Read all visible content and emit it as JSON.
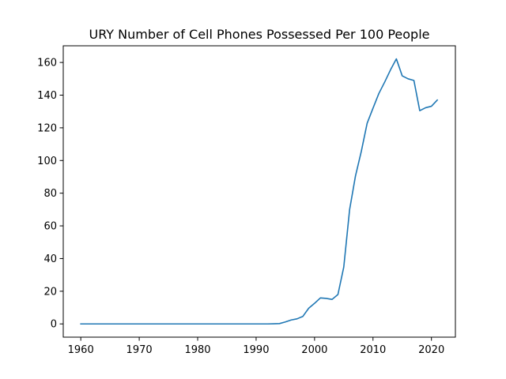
{
  "chart_data": {
    "type": "line",
    "title": "URY Number of Cell Phones Possessed Per 100 People",
    "xlabel": "",
    "ylabel": "",
    "xlim": [
      1957,
      2024.1
    ],
    "ylim": [
      -8.1,
      170.2
    ],
    "x_ticks": [
      1960,
      1970,
      1980,
      1990,
      2000,
      2010,
      2020
    ],
    "y_ticks": [
      0,
      20,
      40,
      60,
      80,
      100,
      120,
      140,
      160
    ],
    "grid": false,
    "legend": "none",
    "series": [
      {
        "color": "#1f77b4",
        "x": [
          1960,
          1961,
          1962,
          1963,
          1964,
          1965,
          1966,
          1967,
          1968,
          1969,
          1970,
          1971,
          1972,
          1973,
          1974,
          1975,
          1976,
          1977,
          1978,
          1979,
          1980,
          1981,
          1982,
          1983,
          1984,
          1985,
          1986,
          1987,
          1988,
          1989,
          1990,
          1991,
          1992,
          1993,
          1994,
          1995,
          1996,
          1997,
          1998,
          1999,
          2000,
          2001,
          2002,
          2003,
          2004,
          2005,
          2006,
          2007,
          2008,
          2009,
          2010,
          2011,
          2012,
          2013,
          2014,
          2015,
          2016,
          2017,
          2018,
          2019,
          2020,
          2021
        ],
        "values": [
          0,
          0,
          0,
          0,
          0,
          0,
          0,
          0,
          0,
          0,
          0,
          0,
          0,
          0,
          0,
          0,
          0,
          0,
          0,
          0,
          0,
          0,
          0,
          0,
          0,
          0,
          0,
          0,
          0,
          0,
          0,
          0,
          0,
          0.1,
          0.2,
          1.2,
          2.4,
          3.1,
          4.6,
          9.6,
          12.6,
          15.9,
          15.6,
          15.0,
          18.0,
          34.8,
          70.0,
          90.5,
          105.6,
          122.8,
          132.0,
          141.0,
          148.0,
          155.5,
          162.2,
          151.8,
          150.0,
          149.0,
          130.5,
          132.3,
          133.2,
          137.0
        ]
      }
    ]
  }
}
